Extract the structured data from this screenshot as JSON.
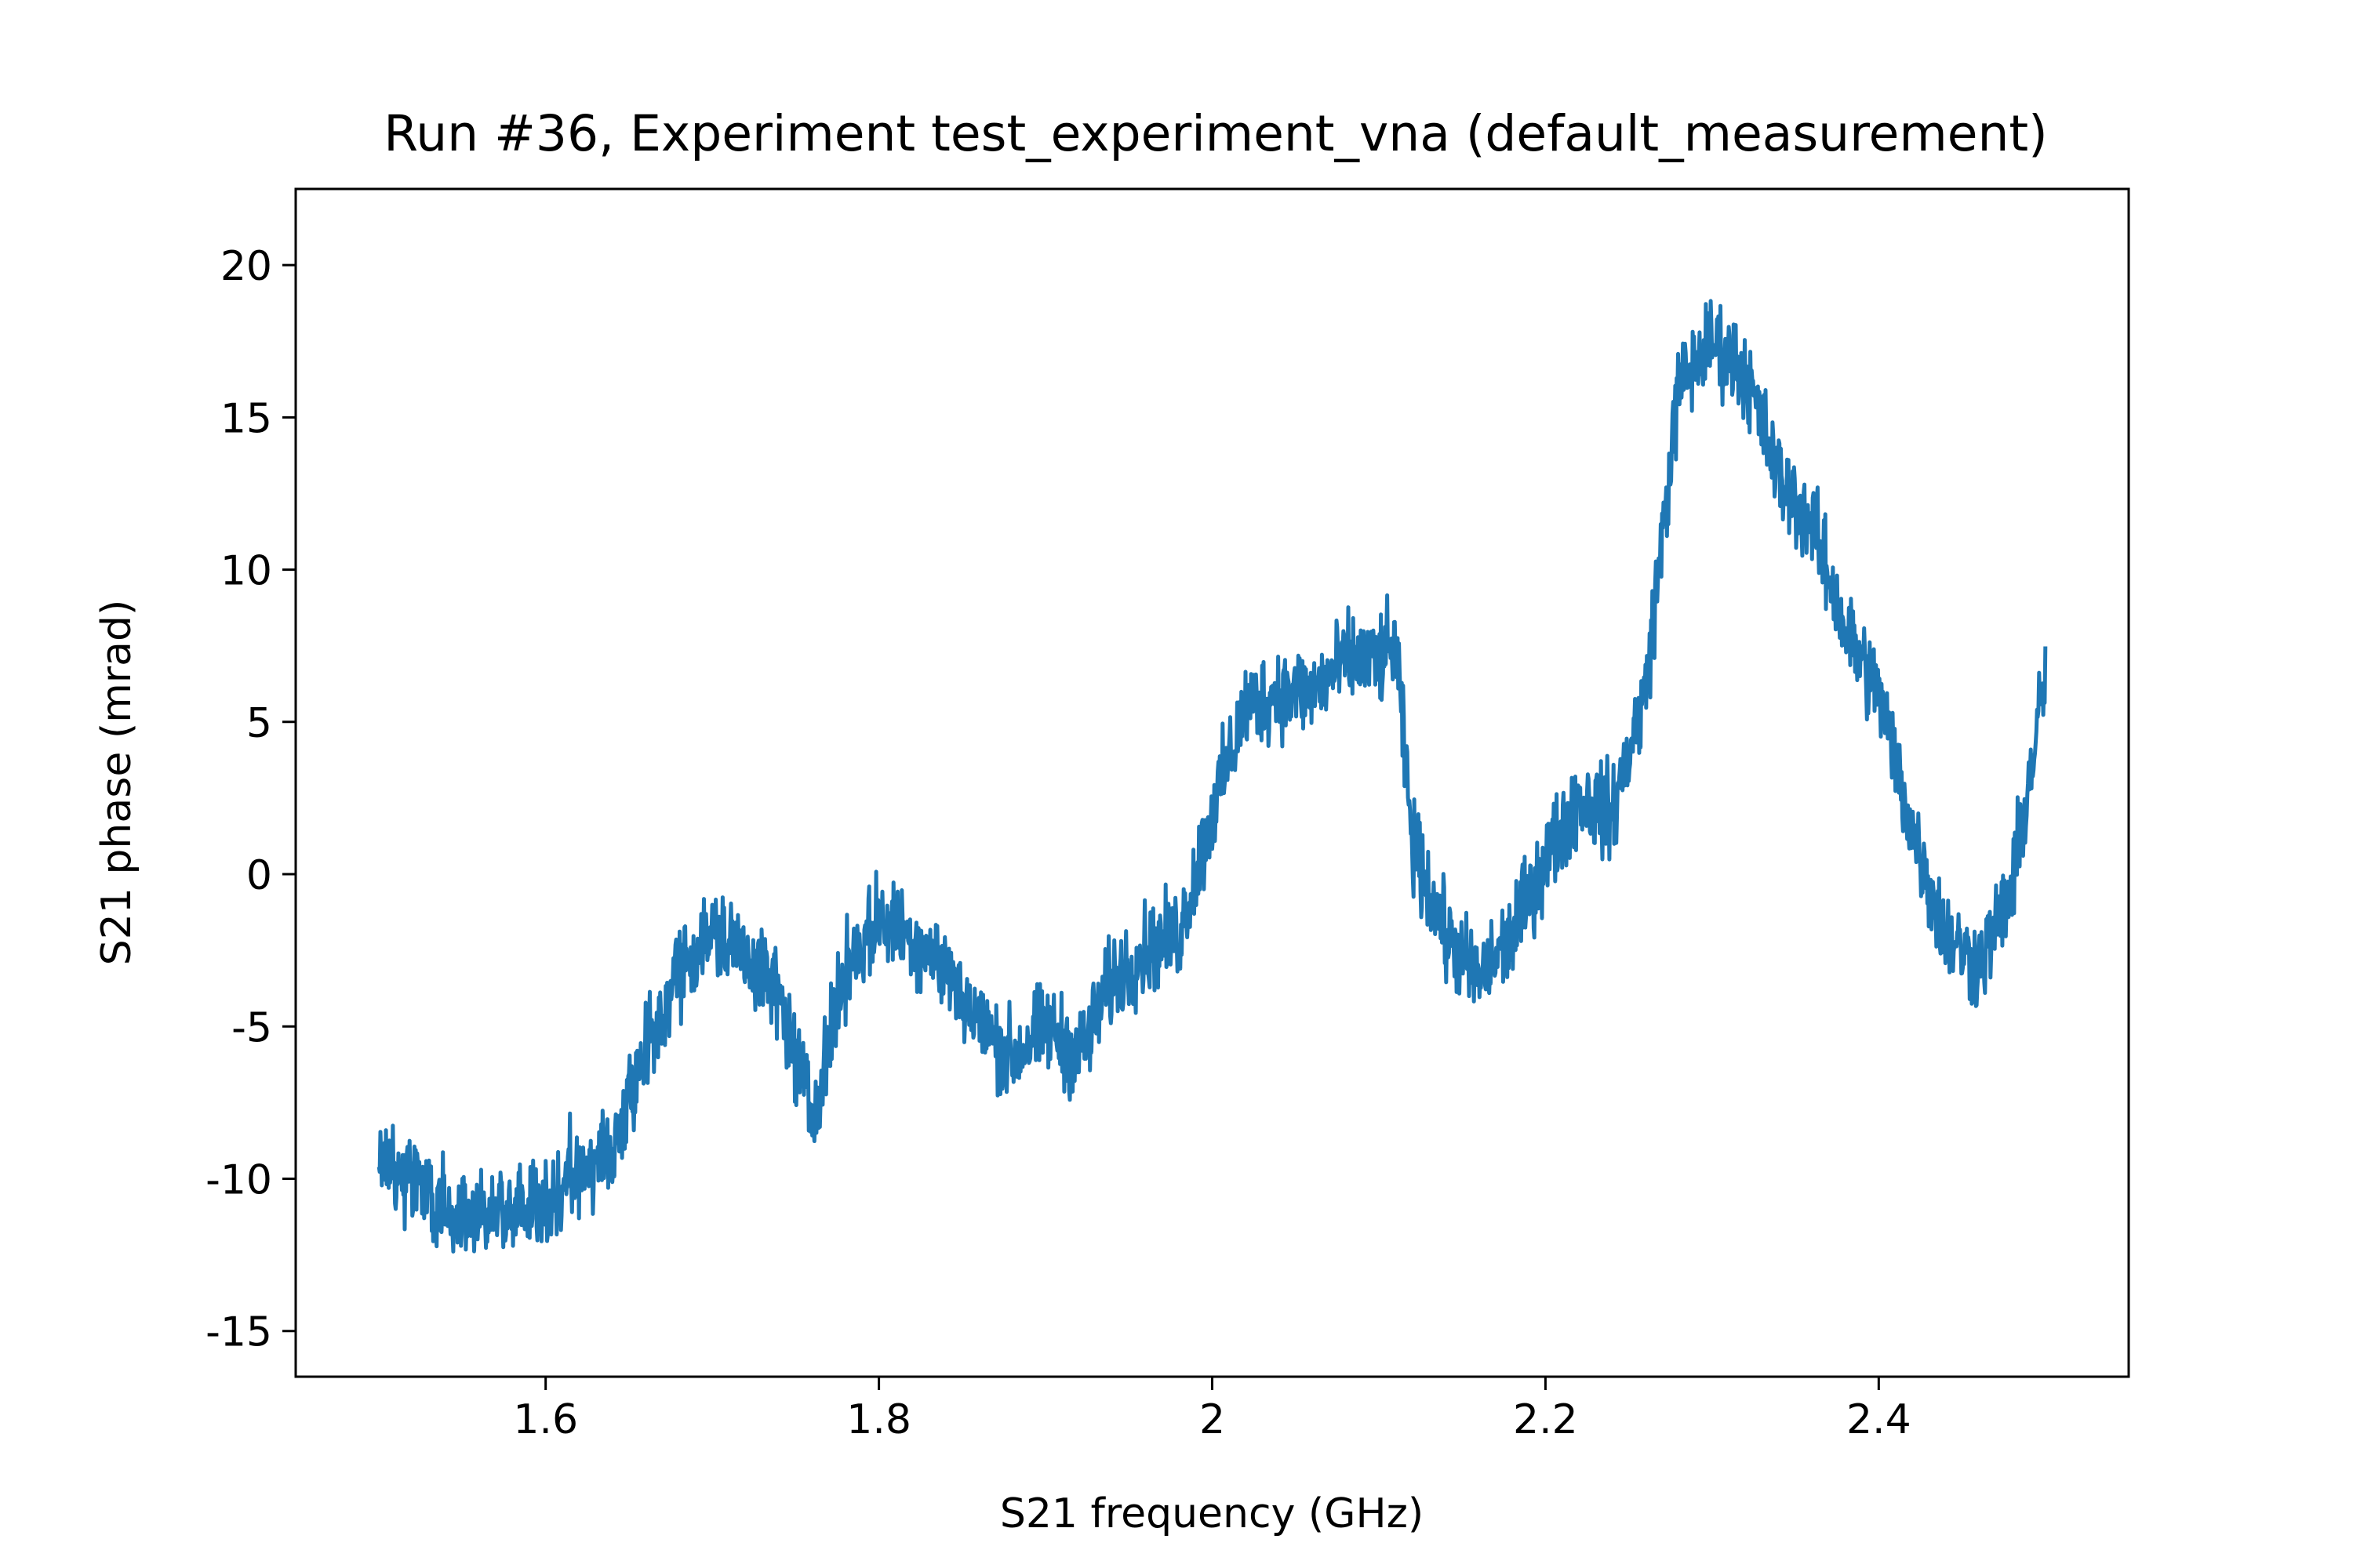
{
  "chart_data": {
    "type": "line",
    "title": "Run #36, Experiment test_experiment_vna (default_measurement)",
    "xlabel": "S21 frequency (GHz)",
    "ylabel": "S21 phase (mrad)",
    "xlim": [
      1.45,
      2.55
    ],
    "ylim": [
      -16.5,
      22.5
    ],
    "grid": false,
    "line_color": "#1f77b4",
    "x_ticks": [
      {
        "value": 1.6,
        "label": "1.6"
      },
      {
        "value": 1.8,
        "label": "1.8"
      },
      {
        "value": 2.0,
        "label": "2"
      },
      {
        "value": 2.2,
        "label": "2.2"
      },
      {
        "value": 2.4,
        "label": "2.4"
      }
    ],
    "y_ticks": [
      {
        "value": -15,
        "label": "-15"
      },
      {
        "value": -10,
        "label": "-10"
      },
      {
        "value": -5,
        "label": "-5"
      },
      {
        "value": 0,
        "label": "0"
      },
      {
        "value": 5,
        "label": "5"
      },
      {
        "value": 10,
        "label": "10"
      },
      {
        "value": 15,
        "label": "15"
      },
      {
        "value": 20,
        "label": "20"
      }
    ],
    "series": [
      {
        "noise_amplitude": 2.2,
        "x": [
          1.5,
          1.52,
          1.54,
          1.56,
          1.58,
          1.6,
          1.62,
          1.64,
          1.66,
          1.68,
          1.7,
          1.72,
          1.74,
          1.76,
          1.78,
          1.8,
          1.82,
          1.84,
          1.86,
          1.88,
          1.9,
          1.92,
          1.94,
          1.96,
          1.98,
          2.0,
          2.02,
          2.04,
          2.06,
          2.08,
          2.1,
          2.11,
          2.12,
          2.14,
          2.16,
          2.18,
          2.2,
          2.22,
          2.24,
          2.26,
          2.28,
          2.3,
          2.32,
          2.34,
          2.36,
          2.38,
          2.4,
          2.42,
          2.44,
          2.46,
          2.48,
          2.5
        ],
        "y": [
          -9.5,
          -10,
          -11,
          -11.5,
          -11,
          -11,
          -9.5,
          -9,
          -6,
          -3,
          -2,
          -2.5,
          -4,
          -8,
          -3,
          -1.5,
          -2,
          -3,
          -5,
          -6,
          -5,
          -6,
          -3.5,
          -2.5,
          -2,
          2,
          5.5,
          6,
          6,
          7,
          7,
          7.5,
          1,
          -2,
          -3.5,
          -2,
          0.5,
          2.5,
          2,
          6,
          16,
          17.5,
          16.5,
          13,
          11.5,
          8,
          6,
          1.5,
          -2,
          -3,
          -0.5,
          6.5
        ]
      }
    ]
  }
}
